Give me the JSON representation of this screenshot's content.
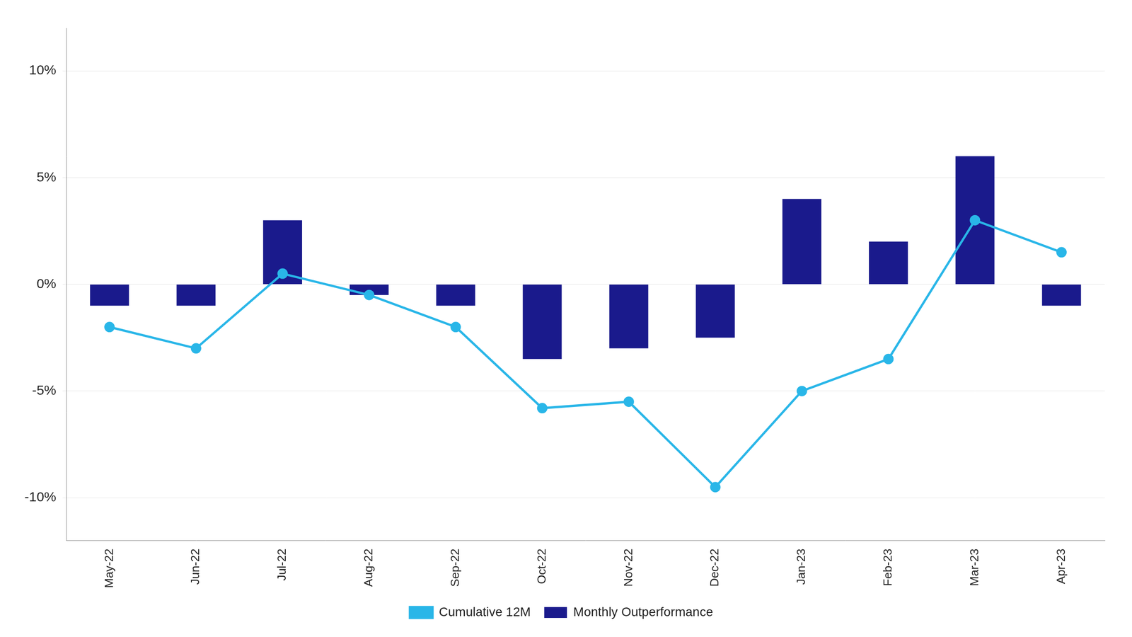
{
  "chart_data": {
    "type": "bar",
    "categories": [
      "May-22",
      "Jun-22",
      "Jul-22",
      "Aug-22",
      "Sep-22",
      "Oct-22",
      "Nov-22",
      "Dec-22",
      "Jan-23",
      "Feb-23",
      "Mar-23",
      "Apr-23"
    ],
    "series": [
      {
        "name": "Monthly Outperformance",
        "type": "bar",
        "color": "#1a1a8c",
        "values": [
          -1.0,
          -1.0,
          3.0,
          -0.5,
          -1.0,
          -3.5,
          -3.0,
          -2.5,
          4.0,
          2.0,
          6.0,
          -1.0
        ]
      },
      {
        "name": "Cumulative 12M",
        "type": "line",
        "color": "#29b6e8",
        "marker": "circle",
        "values": [
          -2.0,
          -3.0,
          0.5,
          -0.5,
          -2.0,
          -5.8,
          -5.5,
          -9.5,
          -5.0,
          -3.5,
          3.0,
          1.5
        ]
      }
    ],
    "ylim": [
      -12,
      12
    ],
    "yticks": [
      {
        "value": -10,
        "label": "-10%"
      },
      {
        "value": -5,
        "label": "-5%"
      },
      {
        "value": 0,
        "label": "0%"
      },
      {
        "value": 5,
        "label": "5%"
      },
      {
        "value": 10,
        "label": "10%"
      }
    ],
    "grid": "y",
    "legend": "bottom"
  }
}
